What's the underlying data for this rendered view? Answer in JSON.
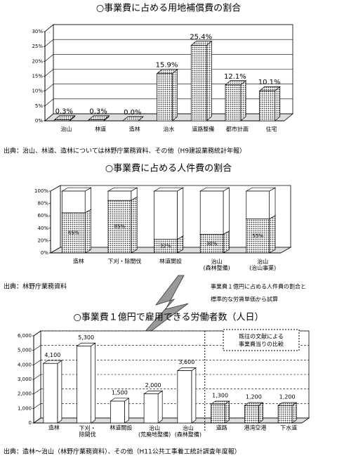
{
  "chart_data": [
    {
      "type": "bar",
      "title": "○事業費に占める用地補償費の割合",
      "categories": [
        "治山",
        "林道",
        "造林",
        "治水",
        "道路整備",
        "都市計画",
        "住宅"
      ],
      "values": [
        0.3,
        0.3,
        0.0,
        15.9,
        25.4,
        12.1,
        10.1
      ],
      "value_labels": [
        "0.3%",
        "0.3%",
        "0.0%",
        "15.9%",
        "25.4%",
        "12.1%",
        "10.1%"
      ],
      "color": "#777777",
      "ylim": [
        0,
        30
      ],
      "yticks": [
        {
          "value": 0,
          "label": "0%"
        },
        {
          "value": 5,
          "label": "5%"
        },
        {
          "value": 10,
          "label": "10%"
        },
        {
          "value": 15,
          "label": "15%"
        },
        {
          "value": 20,
          "label": "20%"
        },
        {
          "value": 25,
          "label": "25%"
        },
        {
          "value": 30,
          "label": "30%"
        }
      ],
      "grid": true,
      "source": "出典：治山、林道、造林については林野庁業務資料、その他（H9建設業務統計年報）"
    },
    {
      "type": "stacked_bar",
      "title": "○事業費に占める人件費の割合",
      "categories": [
        "造林",
        "下刈・除間伐",
        "林道開設",
        "治山\n(森林整備)",
        "治山\n(治山事業)"
      ],
      "series": [
        {
          "color": "#777777",
          "values": [
            65,
            85,
            22,
            30,
            55
          ],
          "value_labels": [
            "65%",
            "85%",
            "22%",
            "30%",
            "55%"
          ]
        },
        {
          "color": "#ffffff",
          "values": [
            35,
            15,
            78,
            70,
            45
          ]
        }
      ],
      "ylim": [
        0,
        100
      ],
      "yticks": [
        {
          "value": 0,
          "label": "0%"
        },
        {
          "value": 20,
          "label": "20%"
        },
        {
          "value": 40,
          "label": "40%"
        },
        {
          "value": 60,
          "label": "60%"
        },
        {
          "value": 80,
          "label": "80%"
        },
        {
          "value": 100,
          "label": "100%"
        }
      ],
      "grid": false,
      "source": "出典：林野庁業務資料",
      "note": [
        "事業費１億円に占める人件費の割合と",
        "標準的な労賃単価から試算"
      ]
    },
    {
      "type": "bar",
      "title": "○事業費１億円で雇用できる労働者数（人日）",
      "categories": [
        "造林",
        "下刈・\n除間伐",
        "林道開設",
        "治山\n(荒廃地整備)",
        "治山\n(森林整備)",
        "道路",
        "港湾空港",
        "下水道"
      ],
      "values": [
        4100,
        5300,
        1500,
        2000,
        3600,
        1300,
        1200,
        1200
      ],
      "value_labels": [
        "4,100",
        "5,300",
        "1,500",
        "2,000",
        "3,600",
        "1,300",
        "1,200",
        "1,200"
      ],
      "colors": [
        "#ffffff",
        "#ffffff",
        "#ffffff",
        "#ffffff",
        "#ffffff",
        "#777777",
        "#777777",
        "#777777"
      ],
      "ylim": [
        0,
        6000
      ],
      "yticks": [
        0,
        {
          "value": 1000,
          "label": "1,000"
        },
        {
          "value": 2000,
          "label": "2,000"
        },
        {
          "value": 3000,
          "label": "3,000"
        },
        {
          "value": 4000,
          "label": "4,000"
        },
        {
          "value": 5000,
          "label": "5,000"
        },
        {
          "value": 6000,
          "label": "6,000"
        }
      ],
      "grid": true,
      "annotation": [
        "既往の文献による",
        "事業費当りの比較"
      ],
      "source": "出典：造林～治山（林野庁業務資料）、その他（H11公共工事着工統計調査年度報）"
    }
  ]
}
